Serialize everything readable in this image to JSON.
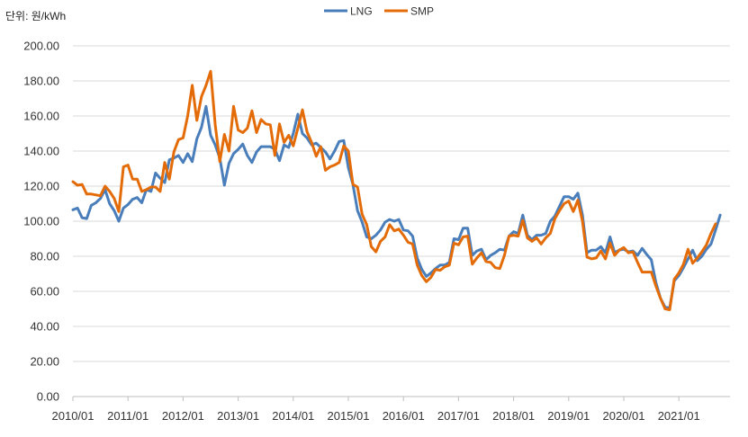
{
  "unit_label": "단위: 원/kWh",
  "chart_data": {
    "type": "line",
    "title": "",
    "xlabel": "",
    "ylabel": "",
    "ylim": [
      0,
      200
    ],
    "yticks": [
      "0.00",
      "20.00",
      "40.00",
      "60.00",
      "80.00",
      "100.00",
      "120.00",
      "140.00",
      "160.00",
      "180.00",
      "200.00"
    ],
    "xticks": [
      "2010/01",
      "2011/01",
      "2012/01",
      "2013/01",
      "2014/01",
      "2015/01",
      "2016/01",
      "2017/01",
      "2018/01",
      "2019/01",
      "2020/01",
      "2021/01"
    ],
    "legend_position": "top-center",
    "grid": true,
    "x_start": "2010/01",
    "series": [
      {
        "name": "LNG",
        "color": "#4A7EBB",
        "values": [
          106.5,
          107.5,
          102,
          101.5,
          109,
          110.5,
          113,
          118,
          110,
          106,
          100,
          107.5,
          109.5,
          112.5,
          113.5,
          110.5,
          118,
          117,
          127.5,
          124.5,
          122,
          135,
          136,
          137.5,
          133.5,
          138.5,
          134,
          147,
          153.5,
          165.5,
          149,
          143.5,
          136,
          120.5,
          133,
          138.5,
          141,
          144,
          137.5,
          133.5,
          139.5,
          142.5,
          142.5,
          142.5,
          141,
          134.5,
          143.5,
          142,
          150,
          161,
          150,
          147.5,
          143.5,
          144.5,
          142,
          139.5,
          135.5,
          140,
          145.5,
          146,
          130.5,
          121,
          106,
          99.5,
          91,
          90,
          92,
          95,
          99.5,
          101,
          100,
          101,
          95,
          94.5,
          91.5,
          79,
          72.5,
          68.5,
          70.5,
          73,
          75,
          75,
          76.5,
          90,
          89.5,
          96,
          96,
          80.5,
          83,
          84,
          78,
          80.5,
          82,
          84,
          83.5,
          91.5,
          94,
          93,
          103.5,
          92,
          89.5,
          92,
          92,
          93,
          100,
          103,
          108.5,
          114,
          114,
          112.5,
          116,
          103.5,
          82,
          83.5,
          83.5,
          85.5,
          82,
          91,
          82,
          83.5,
          84,
          82.5,
          83,
          80.5,
          84.5,
          81,
          78,
          65,
          56,
          51,
          50.5,
          66,
          69,
          73.5,
          78.5,
          83.5,
          77.5,
          80,
          84,
          87,
          95,
          103.5
        ]
      },
      {
        "name": "SMP",
        "color": "#E36C09",
        "values": [
          122.5,
          120.5,
          121,
          115.5,
          115.5,
          115,
          114.5,
          120,
          117,
          113,
          105.5,
          131,
          132,
          124,
          124,
          117,
          118,
          119.5,
          119.5,
          117,
          133.5,
          124,
          139.5,
          146.5,
          147.5,
          160,
          177.5,
          157.5,
          171,
          177.5,
          185.5,
          155,
          134,
          149.5,
          140,
          165.5,
          152,
          150.5,
          153,
          163,
          150.5,
          158,
          155.5,
          155,
          137.5,
          155.5,
          145,
          149,
          143,
          153,
          163.5,
          151,
          145,
          137,
          142.5,
          129,
          131,
          132,
          133.5,
          143,
          140,
          121,
          119.5,
          104,
          98,
          85.5,
          82.5,
          88.5,
          91,
          98,
          94.5,
          95.5,
          92,
          88,
          87,
          75,
          69,
          65.5,
          68,
          72.5,
          72,
          74,
          75,
          87.5,
          86.5,
          91,
          91.5,
          75.5,
          79,
          82,
          77,
          76.5,
          73.5,
          73,
          80.5,
          91.5,
          92,
          91.5,
          100.5,
          90.5,
          88.5,
          90.5,
          87,
          90.5,
          93,
          101.5,
          106,
          110,
          111.5,
          105.5,
          112,
          100,
          79.5,
          78.5,
          79,
          83,
          78.5,
          87.5,
          80.5,
          83.5,
          85,
          82,
          82.5,
          76.5,
          71,
          71,
          71,
          63,
          56,
          50,
          49.5,
          67,
          70.5,
          75.5,
          84,
          76,
          79,
          82.5,
          86.5,
          93,
          98.5
        ]
      }
    ]
  }
}
